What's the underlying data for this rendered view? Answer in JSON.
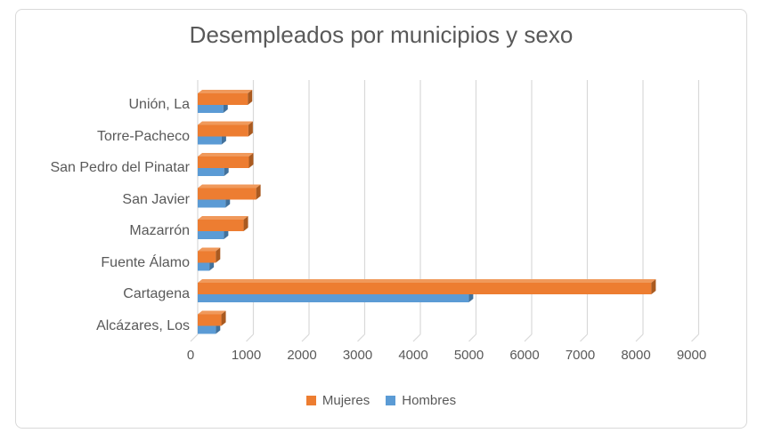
{
  "chart_data": {
    "type": "bar",
    "orientation": "horizontal",
    "style": "3d-bevel",
    "title": "Desempleados por municipios y sexo",
    "categories": [
      "Unión, La",
      "Torre-Pacheco",
      "San Pedro del Pinatar",
      "San Javier",
      "Mazarrón",
      "Fuente Álamo",
      "Cartagena",
      "Alcázares, Los"
    ],
    "series": [
      {
        "name": "Mujeres",
        "color": "#ED7D31",
        "top_color": "#F0995B",
        "cap_color": "#AA5A20",
        "values": [
          900,
          910,
          920,
          1050,
          825,
          325,
          8150,
          425
        ]
      },
      {
        "name": "Hombres",
        "color": "#5B9BD5",
        "top_color": "#85B3DF",
        "cap_color": "#41719C",
        "values": [
          460,
          430,
          475,
          500,
          470,
          210,
          4870,
          325
        ]
      }
    ],
    "xlabel": "",
    "ylabel": "",
    "xlim": [
      0,
      9000
    ],
    "x_tick_step": 1000,
    "x_tick_labels": [
      "0",
      "1000",
      "2000",
      "3000",
      "4000",
      "5000",
      "6000",
      "7000",
      "8000",
      "9000"
    ],
    "grid": true,
    "legend_position": "bottom",
    "gridline_color": "#D9D9D9",
    "frame_color": "#D9D9D9",
    "text_color": "#595959"
  }
}
